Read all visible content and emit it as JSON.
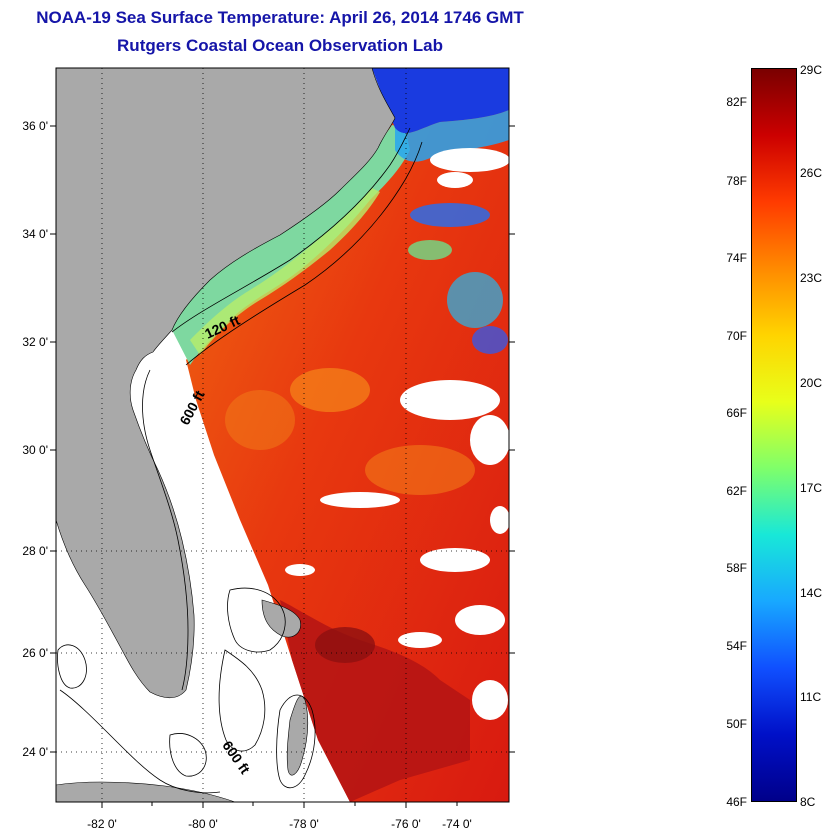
{
  "title": {
    "line1": "NOAA-19 Sea Surface Temperature:  April 26, 2014 1746 GMT",
    "line2": "Rutgers Coastal Ocean Observation Lab"
  },
  "map": {
    "x_ticks": [
      "-82 0'",
      "-80 0'",
      "-78 0'",
      "-76 0'",
      "-74 0'"
    ],
    "y_ticks": [
      "36 0'",
      "34 0'",
      "32 0'",
      "30 0'",
      "28 0'",
      "26 0'",
      "24 0'"
    ],
    "contour_labels": [
      "120 ft",
      "600 ft",
      "600 ft"
    ],
    "colors": {
      "land": "#a9a9a9",
      "no_data": "#ffffff",
      "warm_sea": "#e8300f",
      "gulf_stream": "#b41414",
      "shelf": "#7ed8a0",
      "cold": "#1a3be0"
    }
  },
  "colorbar": {
    "fahrenheit": [
      "82F",
      "78F",
      "74F",
      "70F",
      "66F",
      "62F",
      "58F",
      "54F",
      "50F",
      "46F"
    ],
    "celsius": [
      "29C",
      "26C",
      "23C",
      "20C",
      "17C",
      "14C",
      "11C",
      "8C"
    ],
    "gradient": [
      "#7a0000",
      "#cc0000",
      "#ff3b00",
      "#ff8a00",
      "#ffd400",
      "#e8ff1a",
      "#7fff6a",
      "#18e8d8",
      "#18a8ff",
      "#1050ff",
      "#0010c8",
      "#00008a"
    ]
  }
}
